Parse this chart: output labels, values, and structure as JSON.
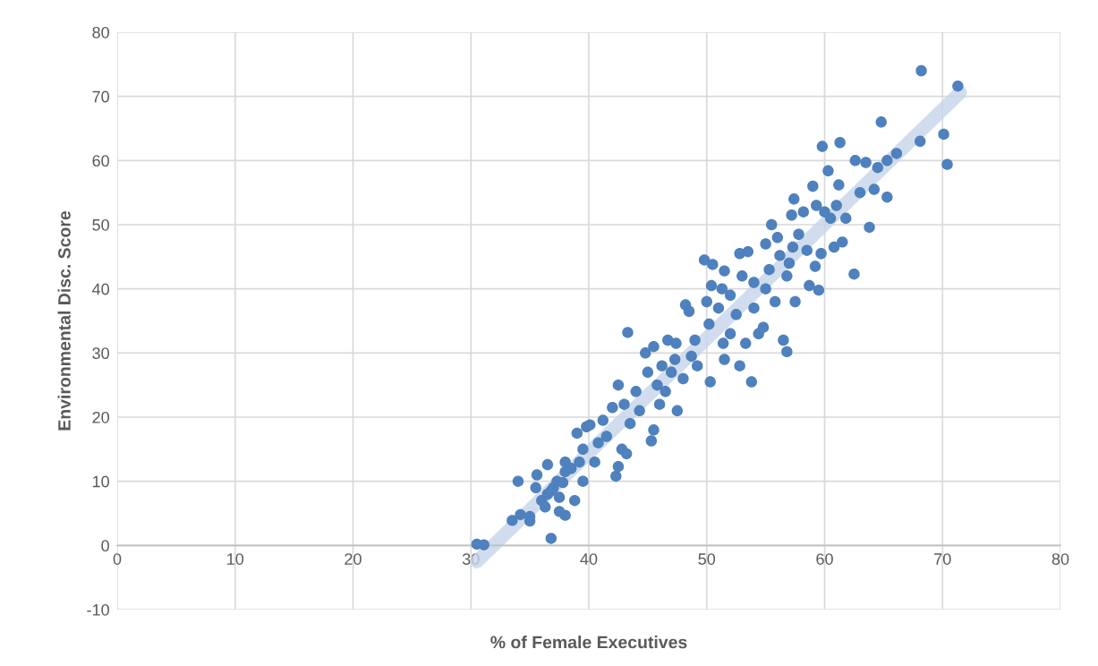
{
  "chart_data": {
    "type": "scatter",
    "xlabel": "% of Female Executives",
    "ylabel": "Environmental Disc. Score",
    "xlim": [
      0,
      80
    ],
    "ylim": [
      -10,
      80
    ],
    "xticks": [
      0,
      10,
      20,
      30,
      40,
      50,
      60,
      70,
      80
    ],
    "yticks": [
      -10,
      0,
      10,
      20,
      30,
      40,
      50,
      60,
      70,
      80
    ],
    "grid": true,
    "marker": "circle",
    "series": [
      {
        "type": "line",
        "marker": "none",
        "color": "#c6d5ea",
        "x": [
          30.5,
          71.5
        ],
        "values": [
          -2.5,
          70.6
        ]
      },
      {
        "color": "#4e81bd",
        "x": [
          30.5,
          31.1,
          36.8,
          33.5,
          34.2,
          35.0,
          35.0,
          34.0,
          35.5,
          35.6,
          36.5,
          36,
          36.3,
          36.5,
          37,
          37.3,
          37.5,
          38,
          38,
          38.5,
          38,
          38.8,
          37.5,
          36.8,
          37.8,
          39.2,
          39.5,
          39.8,
          39,
          39.5,
          40.1,
          40.5,
          40.8,
          41.2,
          41.5,
          42,
          42.3,
          42.5,
          42.8,
          42.5,
          43,
          43.3,
          43.5,
          43.2,
          44,
          44.3,
          44.8,
          45,
          45.3,
          45.5,
          45.5,
          45.8,
          46,
          46.2,
          46.5,
          46.7,
          47,
          47.3,
          47.5,
          47.4,
          48,
          48.2,
          48.5,
          48.7,
          49,
          49.2,
          49.8,
          50,
          50.2,
          50.3,
          50.4,
          50.5,
          51,
          51.3,
          51.4,
          51.5,
          51.5,
          52,
          52,
          52.5,
          52.8,
          52.8,
          53,
          53.3,
          53.5,
          53.8,
          54,
          54,
          54.4,
          54.8,
          55,
          55,
          55.3,
          55.5,
          55.8,
          56,
          56.2,
          56.5,
          56.8,
          56.8,
          57,
          57.2,
          57.4,
          57.3,
          57.5,
          57.8,
          58.2,
          58.5,
          58.7,
          59,
          59.2,
          59.3,
          59.5,
          59.7,
          59.8,
          60,
          60.3,
          60.5,
          60.8,
          61,
          61.2,
          61.3,
          61.5,
          61.8,
          62.5,
          62.6,
          63,
          63.5,
          63.8,
          64.5,
          64.2,
          64.8,
          65.3,
          65.3,
          66.1,
          68.2,
          68.1,
          70.1,
          70.4,
          71.3
        ],
        "values": [
          0.2,
          0.1,
          1.1,
          3.9,
          4.8,
          3.8,
          4.5,
          10.0,
          9.0,
          11.0,
          12.6,
          7,
          6,
          8,
          9,
          10,
          5.3,
          4.7,
          11.5,
          12,
          13,
          7,
          7.5,
          8.5,
          9.8,
          13,
          15,
          18.5,
          17.5,
          10,
          18.8,
          13,
          16,
          19.5,
          17,
          21.5,
          10.8,
          12.3,
          15,
          25,
          22,
          33.2,
          19,
          14.3,
          24,
          21,
          30,
          27,
          16.3,
          18,
          31,
          25,
          22,
          28,
          24,
          32,
          27,
          29,
          21,
          31.5,
          26,
          37.5,
          36.5,
          29.5,
          32,
          28,
          44.5,
          38,
          34.5,
          25.5,
          40.5,
          43.8,
          37,
          40,
          31.5,
          42.8,
          29,
          33,
          39,
          36,
          28,
          45.5,
          42,
          31.5,
          45.8,
          25.5,
          41,
          37,
          33,
          34,
          47,
          40,
          43,
          50,
          38,
          48,
          45.2,
          32,
          30.2,
          42,
          44,
          51.5,
          54,
          46.5,
          38,
          48.5,
          52,
          46,
          40.5,
          56,
          43.5,
          53,
          39.8,
          45.5,
          62.2,
          52,
          58.4,
          51,
          46.5,
          53,
          56.2,
          62.8,
          47.3,
          51,
          42.3,
          60,
          55,
          59.7,
          49.6,
          58.9,
          55.5,
          66,
          54.3,
          60,
          61.1,
          74,
          63,
          64.1,
          59.4,
          71.6
        ]
      }
    ]
  }
}
